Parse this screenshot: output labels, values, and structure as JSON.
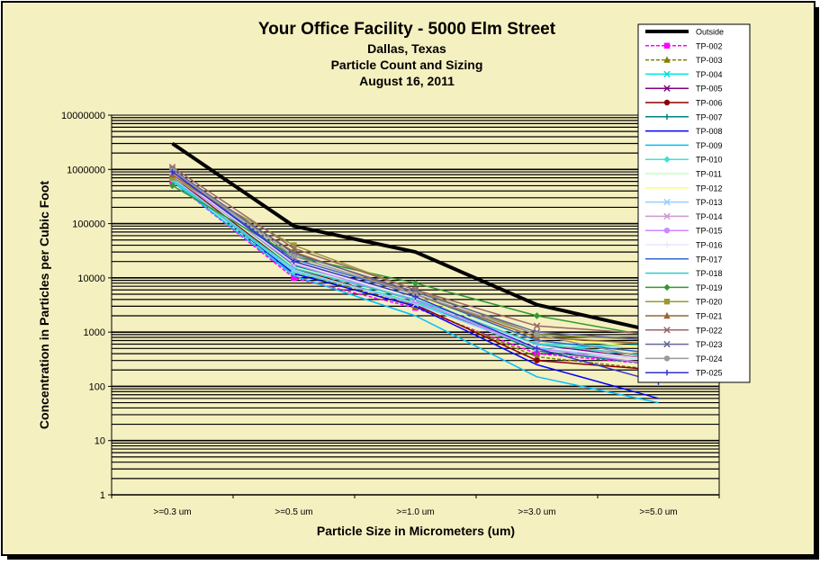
{
  "chart_data": {
    "type": "line",
    "title": "Your Office Facility - 5000 Elm Street",
    "subtitle_lines": [
      "Dallas, Texas",
      "Particle Count and Sizing",
      "August 16, 2011"
    ],
    "xlabel": "Particle Size in Micrometers (um)",
    "ylabel": "Concentration in Particles per Cubic Foot",
    "categories": [
      ">=0.3 um",
      ">=0.5 um",
      ">=1.0 um",
      ">=3.0 um",
      ">=5.0 um"
    ],
    "y_scale": "log",
    "ylim": [
      1,
      10000000
    ],
    "y_ticks": [
      "1",
      "10",
      "100",
      "1000",
      "10000",
      "100000",
      "1000000",
      "10000000"
    ],
    "grid": true,
    "legend_position": "right",
    "background_color": "#f5f0c0",
    "series": [
      {
        "name": "Outside",
        "color": "#000000",
        "marker": "none",
        "values": [
          3000000,
          90000,
          30000,
          3200,
          1000
        ]
      },
      {
        "name": "TP-002",
        "color": "#ff00ff",
        "marker": "square",
        "values": [
          600000,
          10000,
          2800,
          400,
          250
        ]
      },
      {
        "name": "TP-003",
        "color": "#808000",
        "marker": "triangle",
        "values": [
          700000,
          13000,
          3000,
          350,
          200
        ]
      },
      {
        "name": "TP-004",
        "color": "#00e0e0",
        "marker": "x",
        "values": [
          800000,
          14000,
          3500,
          500,
          600
        ]
      },
      {
        "name": "TP-005",
        "color": "#800080",
        "marker": "x",
        "values": [
          900000,
          20000,
          4000,
          600,
          300
        ]
      },
      {
        "name": "TP-006",
        "color": "#8b0000",
        "marker": "circle",
        "values": [
          750000,
          15000,
          3200,
          300,
          200
        ]
      },
      {
        "name": "TP-007",
        "color": "#008080",
        "marker": "plus",
        "values": [
          850000,
          17000,
          3800,
          450,
          250
        ]
      },
      {
        "name": "TP-008",
        "color": "#0000ff",
        "marker": "none",
        "values": [
          700000,
          12000,
          3000,
          250,
          60
        ]
      },
      {
        "name": "TP-009",
        "color": "#00bfff",
        "marker": "none",
        "values": [
          600000,
          11000,
          2000,
          150,
          50
        ]
      },
      {
        "name": "TP-010",
        "color": "#40e0d0",
        "marker": "diamond",
        "values": [
          650000,
          13000,
          3500,
          600,
          550
        ]
      },
      {
        "name": "TP-011",
        "color": "#c0ffc0",
        "marker": "none",
        "values": [
          800000,
          16000,
          4200,
          700,
          400
        ]
      },
      {
        "name": "TP-012",
        "color": "#ffff66",
        "marker": "none",
        "values": [
          900000,
          18000,
          4500,
          800,
          500
        ]
      },
      {
        "name": "TP-013",
        "color": "#99ccff",
        "marker": "x",
        "values": [
          700000,
          14000,
          3300,
          500,
          300
        ]
      },
      {
        "name": "TP-014",
        "color": "#cc99cc",
        "marker": "x",
        "values": [
          750000,
          20000,
          4000,
          600,
          350
        ]
      },
      {
        "name": "TP-015",
        "color": "#cc88ff",
        "marker": "circle",
        "values": [
          800000,
          18000,
          3800,
          500,
          250
        ]
      },
      {
        "name": "TP-016",
        "color": "#e8e8ff",
        "marker": "plus",
        "values": [
          850000,
          19000,
          4100,
          550,
          300
        ]
      },
      {
        "name": "TP-017",
        "color": "#3366cc",
        "marker": "none",
        "values": [
          900000,
          22000,
          5000,
          700,
          400
        ]
      },
      {
        "name": "TP-018",
        "color": "#33cccc",
        "marker": "none",
        "values": [
          600000,
          15000,
          4000,
          600,
          350
        ]
      },
      {
        "name": "TP-019",
        "color": "#339933",
        "marker": "diamond",
        "values": [
          500000,
          25000,
          8000,
          2000,
          800
        ]
      },
      {
        "name": "TP-020",
        "color": "#999933",
        "marker": "square",
        "values": [
          700000,
          40000,
          6000,
          900,
          700
        ]
      },
      {
        "name": "TP-021",
        "color": "#996633",
        "marker": "triangle",
        "values": [
          800000,
          30000,
          5000,
          800,
          600
        ]
      },
      {
        "name": "TP-022",
        "color": "#996666",
        "marker": "x",
        "values": [
          1100000,
          35000,
          6000,
          1300,
          900
        ]
      },
      {
        "name": "TP-023",
        "color": "#666699",
        "marker": "x",
        "values": [
          1000000,
          28000,
          5500,
          1000,
          700
        ]
      },
      {
        "name": "TP-024",
        "color": "#999999",
        "marker": "circle",
        "values": [
          950000,
          25000,
          5000,
          900,
          300
        ]
      },
      {
        "name": "TP-025",
        "color": "#3333cc",
        "marker": "plus",
        "values": [
          900000,
          20000,
          4500,
          500,
          120
        ]
      }
    ]
  }
}
